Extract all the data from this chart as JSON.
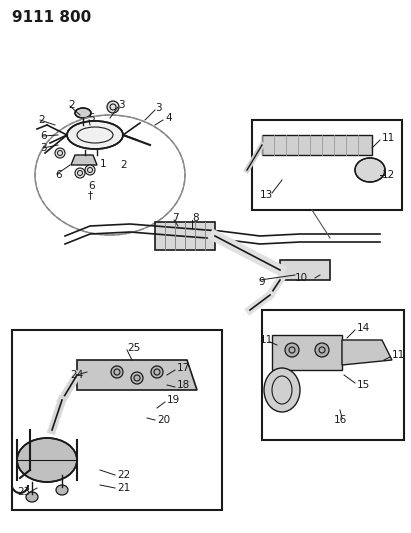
{
  "title": "9111 800",
  "background_color": "#ffffff",
  "line_color": "#1a1a1a",
  "text_color": "#1a1a1a",
  "title_fontsize": 11,
  "label_fontsize": 7.5,
  "figsize": [
    4.11,
    5.33
  ],
  "dpi": 100
}
